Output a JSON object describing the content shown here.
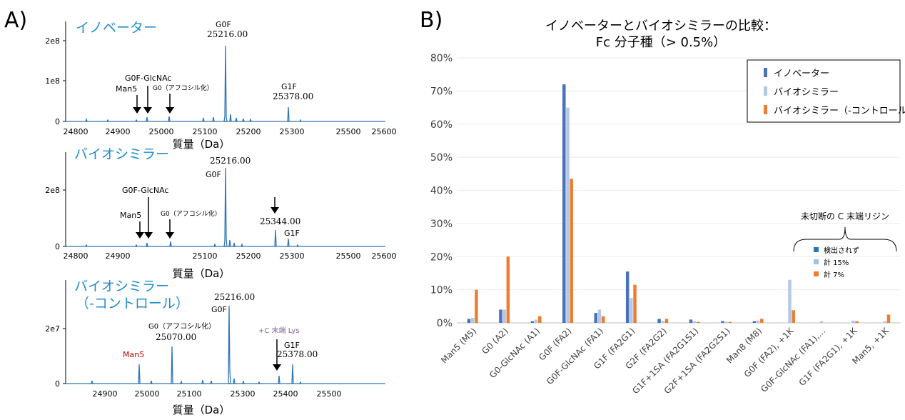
{
  "panel_labels": {
    "a": "A)",
    "b": "B)"
  },
  "panel_a": {
    "x_unit_label": "質量（Da）",
    "spectra": [
      {
        "title": "イノベーター",
        "y_ticks": [
          "0",
          "1e8",
          "2e8"
        ],
        "x_ticks": [
          "24800",
          "24900",
          "25000",
          "25100",
          "25200",
          "25300",
          "25500",
          "25600"
        ],
        "labels": {
          "g0f_glcnac": "G0F-GlcNAc",
          "man5": "Man5",
          "g0_afuco": "G0（アフコシル化）",
          "g0f": "G0F",
          "g0f_mass": "25216.00",
          "g1f": "G1F",
          "g1f_mass": "25378.00"
        }
      },
      {
        "title": "バイオシミラー",
        "y_ticks": [
          "0",
          "2e8"
        ],
        "x_ticks": [
          "24800",
          "24900",
          "25100",
          "25200",
          "25300",
          "25500",
          "25600"
        ],
        "labels": {
          "g0f_mass": "25216.00",
          "g0f": "G0F",
          "g0f_glcnac": "G0F-GlcNAc",
          "man5": "Man5",
          "g0_afuco": "G0（アフコシル化）",
          "k_mass": "25344.00",
          "g1f": "G1F"
        }
      },
      {
        "title_line1": "バイオシミラー",
        "title_line2": "（-コントロール）",
        "y_ticks": [
          "0",
          "2e7"
        ],
        "x_ticks": [
          "24900",
          "25000",
          "25100",
          "25300",
          "25400",
          "25500"
        ],
        "labels": {
          "g0f_mass": "25216.00",
          "g0f": "G0F",
          "g0_afuco": "G0（アフコシル化）",
          "g0_mass": "25070.00",
          "lys": "+C 末端 Lys",
          "man5": "Man5",
          "g1f": "G1F",
          "g1f_mass": "25378.00"
        }
      }
    ]
  },
  "chart_data": {
    "type": "bar",
    "title_line1": "イノベーターとバイオシミラーの比較：",
    "title_line2": "Fc 分子種（> 0.5%）",
    "ylim": [
      0,
      80
    ],
    "y_ticks": [
      "0%",
      "10%",
      "20%",
      "30%",
      "40%",
      "50%",
      "60%",
      "70%",
      "80%"
    ],
    "categories": [
      "Man5 (M5)",
      "G0 (A2)",
      "G0-GlcNAc (A1)",
      "G0F (FA2)",
      "G0F-GlcNAc (FA1)",
      "G1F (FA2G1)",
      "G2F (FA2G2)",
      "G1F+1SA (FA2G1S1)",
      "G2F+1SA (FA2G2S1)",
      "Man8 (M8)",
      "G0F (FA2), +1K",
      "G0F-GlcNAc (FA1),...",
      "G1F (FA2G1), +1K",
      "Man5, +1K"
    ],
    "series": [
      {
        "name": "イノベーター",
        "color": "#4a72b8",
        "values": [
          1.2,
          4.0,
          0.5,
          72.0,
          3.0,
          15.5,
          1.2,
          1.0,
          0.5,
          0.5,
          0.0,
          0.0,
          0.0,
          0.0
        ]
      },
      {
        "name": "バイオシミラー",
        "color": "#b4c7e7",
        "values": [
          1.5,
          4.0,
          1.0,
          65.0,
          4.0,
          7.5,
          0.5,
          0.5,
          0.3,
          0.7,
          13.0,
          0.5,
          0.7,
          0.5
        ]
      },
      {
        "name": "バイオシミラー（-コントロール）",
        "color": "#ed7d31",
        "values": [
          10.0,
          20.0,
          2.0,
          43.5,
          2.0,
          11.5,
          1.2,
          0.3,
          0.3,
          1.2,
          3.8,
          0.0,
          0.5,
          2.5
        ]
      }
    ],
    "legend_position": "top-right",
    "annotation": {
      "title": "未切断の C 末端リジン",
      "items": [
        {
          "label": "検出されず",
          "color": "#2e75b6"
        },
        {
          "label": "計 15%",
          "color": "#9dc3e6"
        },
        {
          "label": "計 7%",
          "color": "#ed7d31"
        }
      ]
    }
  }
}
